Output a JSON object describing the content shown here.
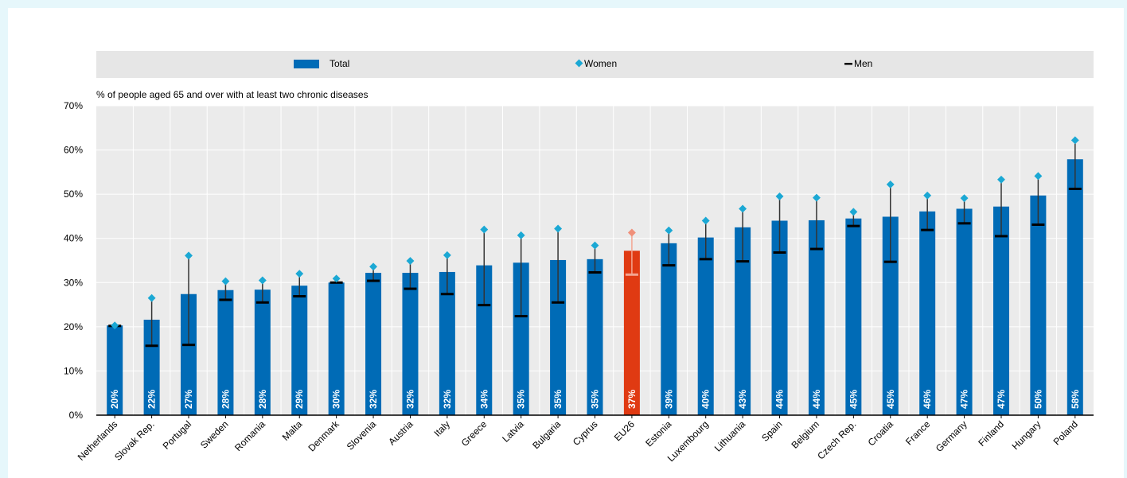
{
  "legend": {
    "total_label": "Total",
    "women_label": "Women",
    "men_label": "Men"
  },
  "colors": {
    "plot_bg": "#ebebeb",
    "legend_bg": "#e6e6e6",
    "bar": "#006bb6",
    "bar_highlight": "#e03a12",
    "women_marker": "#1ba8d4",
    "women_marker_highlight": "#f0907a",
    "men_marker": "#000000",
    "men_marker_highlight": "#f3a591",
    "whisker": "#333333",
    "grid": "#ffffff"
  },
  "chart_data": {
    "type": "bar",
    "ylabel": "% of people aged 65 and over with at least two chronic diseases",
    "ylim": [
      0,
      70
    ],
    "yticks": [
      0,
      10,
      20,
      30,
      40,
      50,
      60,
      70
    ],
    "ytick_labels": [
      "0%",
      "10%",
      "20%",
      "30%",
      "40%",
      "50%",
      "60%",
      "70%"
    ],
    "legend_position": "top",
    "highlight": "EU26",
    "categories": [
      "Netherlands",
      "Slovak Rep.",
      "Portugal",
      "Sweden",
      "Romania",
      "Malta",
      "Denmark",
      "Slovenia",
      "Austria",
      "Italy",
      "Greece",
      "Latvia",
      "Bulgaria",
      "Cyprus",
      "EU26",
      "Estonia",
      "Luxembourg",
      "Lithuania",
      "Spain",
      "Belgium",
      "Czech Rep.",
      "Croatia",
      "France",
      "Germany",
      "Finland",
      "Hungary",
      "Poland"
    ],
    "series": [
      {
        "name": "Total",
        "values": [
          20.3,
          21.6,
          27.4,
          28.3,
          28.4,
          29.3,
          30.0,
          32.2,
          32.2,
          32.4,
          33.9,
          34.5,
          35.1,
          35.3,
          37.2,
          38.9,
          40.2,
          42.5,
          44.0,
          44.1,
          44.5,
          44.9,
          46.1,
          46.7,
          47.2,
          49.7,
          57.9
        ],
        "labels": [
          "20%",
          "22%",
          "27%",
          "28%",
          "28%",
          "29%",
          "30%",
          "32%",
          "32%",
          "32%",
          "34%",
          "35%",
          "35%",
          "35%",
          "37%",
          "39%",
          "40%",
          "43%",
          "44%",
          "44%",
          "45%",
          "45%",
          "46%",
          "47%",
          "47%",
          "50%",
          "58%"
        ]
      },
      {
        "name": "Women",
        "values": [
          20.3,
          26.5,
          36.1,
          30.3,
          30.5,
          32.0,
          30.9,
          33.6,
          34.9,
          36.2,
          42.0,
          40.7,
          42.2,
          38.4,
          41.3,
          41.8,
          44.0,
          46.7,
          49.5,
          49.2,
          46.0,
          52.2,
          49.7,
          49.1,
          53.3,
          54.1,
          62.2
        ]
      },
      {
        "name": "Men",
        "values": [
          20.2,
          15.7,
          15.9,
          26.1,
          25.5,
          26.9,
          30.0,
          30.4,
          28.6,
          27.4,
          24.9,
          22.4,
          25.5,
          32.3,
          31.8,
          33.9,
          35.3,
          34.8,
          36.8,
          37.6,
          42.8,
          34.7,
          41.9,
          43.4,
          40.5,
          43.1,
          51.2
        ]
      }
    ]
  }
}
